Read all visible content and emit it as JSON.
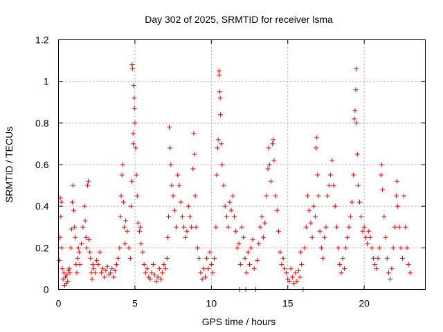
{
  "chart_data": {
    "type": "scatter",
    "title": "Day 302 of 2025, SRMTID for receiver lsma",
    "xlabel": "GPS time / hours",
    "ylabel": "SRMTID / TECUs",
    "xlim": [
      0,
      24
    ],
    "ylim": [
      0,
      1.2
    ],
    "xticks": [
      0,
      5,
      10,
      15,
      20
    ],
    "xtick_labels": [
      "0",
      "5",
      "10",
      "15",
      "20"
    ],
    "yticks": [
      0,
      0.2,
      0.4,
      0.6,
      0.8,
      1.0,
      1.2
    ],
    "ytick_labels": [
      "0",
      "0.2",
      "0.4",
      "0.6",
      "0.8",
      "1",
      "1.2"
    ],
    "grid": true,
    "marker": "+",
    "series": [
      {
        "name": "SRMTID",
        "color": "#e00000",
        "points": [
          [
            0.05,
            0.14
          ],
          [
            0.1,
            0.25
          ],
          [
            0.12,
            0.44
          ],
          [
            0.15,
            0.35
          ],
          [
            0.2,
            0.42
          ],
          [
            0.22,
            0.2
          ],
          [
            0.25,
            0.1
          ],
          [
            0.3,
            0.05
          ],
          [
            0.35,
            0.08
          ],
          [
            0.4,
            0.02
          ],
          [
            0.45,
            0.06
          ],
          [
            0.5,
            0.03
          ],
          [
            0.55,
            0.07
          ],
          [
            0.6,
            0.04
          ],
          [
            0.65,
            0.09
          ],
          [
            0.7,
            0.1
          ],
          [
            0.75,
            0.08
          ],
          [
            0.8,
            0.2
          ],
          [
            0.85,
            0.29
          ],
          [
            0.9,
            0.42
          ],
          [
            0.95,
            0.5
          ],
          [
            1.0,
            0.38
          ],
          [
            1.05,
            0.3
          ],
          [
            1.1,
            0.25
          ],
          [
            1.15,
            0.12
          ],
          [
            1.2,
            0.08
          ],
          [
            1.25,
            0.15
          ],
          [
            1.3,
            0.2
          ],
          [
            1.35,
            0.18
          ],
          [
            1.4,
            0.12
          ],
          [
            1.5,
            0.22
          ],
          [
            1.6,
            0.3
          ],
          [
            1.7,
            0.4
          ],
          [
            1.75,
            0.33
          ],
          [
            1.8,
            0.25
          ],
          [
            1.85,
            0.2
          ],
          [
            1.9,
            0.5
          ],
          [
            1.95,
            0.52
          ],
          [
            2.0,
            0.24
          ],
          [
            2.05,
            0.18
          ],
          [
            2.1,
            0.15
          ],
          [
            2.15,
            0.08
          ],
          [
            2.2,
            0.05
          ],
          [
            2.25,
            0.12
          ],
          [
            2.3,
            0.1
          ],
          [
            2.4,
            0.08
          ],
          [
            2.5,
            0.14
          ],
          [
            2.6,
            0.12
          ],
          [
            2.7,
            0.18
          ],
          [
            2.8,
            0.08
          ],
          [
            2.9,
            0.1
          ],
          [
            3.0,
            0.06
          ],
          [
            3.1,
            0.09
          ],
          [
            3.2,
            0.11
          ],
          [
            3.3,
            0.07
          ],
          [
            3.4,
            0.08
          ],
          [
            3.5,
            0.1
          ],
          [
            3.6,
            0.06
          ],
          [
            3.7,
            0.09
          ],
          [
            3.8,
            0.12
          ],
          [
            3.9,
            0.15
          ],
          [
            4.0,
            0.2
          ],
          [
            4.05,
            0.35
          ],
          [
            4.1,
            0.45
          ],
          [
            4.15,
            0.55
          ],
          [
            4.2,
            0.6
          ],
          [
            4.25,
            0.42
          ],
          [
            4.3,
            0.3
          ],
          [
            4.35,
            0.22
          ],
          [
            4.4,
            0.33
          ],
          [
            4.5,
            0.28
          ],
          [
            4.6,
            0.2
          ],
          [
            4.7,
            0.15
          ],
          [
            4.75,
            0.4
          ],
          [
            4.8,
            0.52
          ],
          [
            4.82,
            1.08
          ],
          [
            4.85,
            1.06
          ],
          [
            4.88,
            0.75
          ],
          [
            4.9,
            0.7
          ],
          [
            4.92,
            0.98
          ],
          [
            4.95,
            0.92
          ],
          [
            4.97,
            0.87
          ],
          [
            5.0,
            0.8
          ],
          [
            5.05,
            0.68
          ],
          [
            5.1,
            0.55
          ],
          [
            5.15,
            0.45
          ],
          [
            5.2,
            0.32
          ],
          [
            5.3,
            0.28
          ],
          [
            5.35,
            0.3
          ],
          [
            5.4,
            0.22
          ],
          [
            5.5,
            0.18
          ],
          [
            5.6,
            0.12
          ],
          [
            5.7,
            0.08
          ],
          [
            5.8,
            0.1
          ],
          [
            5.9,
            0.06
          ],
          [
            6.0,
            0.05
          ],
          [
            6.1,
            0.08
          ],
          [
            6.2,
            0.12
          ],
          [
            6.3,
            0.07
          ],
          [
            6.4,
            0.04
          ],
          [
            6.5,
            0.06
          ],
          [
            6.6,
            0.1
          ],
          [
            6.7,
            0.05
          ],
          [
            6.8,
            0.08
          ],
          [
            6.9,
            0.12
          ],
          [
            7.0,
            0.1
          ],
          [
            7.1,
            0.15
          ],
          [
            7.15,
            0.25
          ],
          [
            7.2,
            0.35
          ],
          [
            7.25,
            0.78
          ],
          [
            7.3,
            0.68
          ],
          [
            7.35,
            0.6
          ],
          [
            7.4,
            0.5
          ],
          [
            7.5,
            0.45
          ],
          [
            7.6,
            0.38
          ],
          [
            7.7,
            0.3
          ],
          [
            7.8,
            0.55
          ],
          [
            7.9,
            0.5
          ],
          [
            8.0,
            0.42
          ],
          [
            8.1,
            0.35
          ],
          [
            8.2,
            0.3
          ],
          [
            8.3,
            0.25
          ],
          [
            8.4,
            0.28
          ],
          [
            8.5,
            0.4
          ],
          [
            8.6,
            0.35
          ],
          [
            8.7,
            0.3
          ],
          [
            8.8,
            0.58
          ],
          [
            8.85,
            0.75
          ],
          [
            8.9,
            0.65
          ],
          [
            8.95,
            0.45
          ],
          [
            9.0,
            0.3
          ],
          [
            9.1,
            0.2
          ],
          [
            9.2,
            0.15
          ],
          [
            9.3,
            0.08
          ],
          [
            9.4,
            0.05
          ],
          [
            9.5,
            0.1
          ],
          [
            9.6,
            0.06
          ],
          [
            9.7,
            0.15
          ],
          [
            9.8,
            0.1
          ],
          [
            9.9,
            0.18
          ],
          [
            10.0,
            0.12
          ],
          [
            10.1,
            0.08
          ],
          [
            10.2,
            0.15
          ],
          [
            10.3,
            0.3
          ],
          [
            10.35,
            0.55
          ],
          [
            10.4,
            0.68
          ],
          [
            10.45,
            0.72
          ],
          [
            10.5,
            1.05
          ],
          [
            10.52,
            1.03
          ],
          [
            10.55,
            0.95
          ],
          [
            10.58,
            0.92
          ],
          [
            10.6,
            0.84
          ],
          [
            10.65,
            0.7
          ],
          [
            10.7,
            0.6
          ],
          [
            10.8,
            0.5
          ],
          [
            10.9,
            0.4
          ],
          [
            11.0,
            0.35
          ],
          [
            11.1,
            0.3
          ],
          [
            11.2,
            0.42
          ],
          [
            11.3,
            0.38
          ],
          [
            11.4,
            0.45
          ],
          [
            11.5,
            0.35
          ],
          [
            11.6,
            0.28
          ],
          [
            11.7,
            0.2
          ],
          [
            11.8,
            0.22
          ],
          [
            11.85,
            0.0
          ],
          [
            11.9,
            0.12
          ],
          [
            12.0,
            0.3
          ],
          [
            12.1,
            0.25
          ],
          [
            12.2,
            0.15
          ],
          [
            12.25,
            0.0
          ],
          [
            12.3,
            0.08
          ],
          [
            12.4,
            0.18
          ],
          [
            12.5,
            0.12
          ],
          [
            12.6,
            0.2
          ],
          [
            12.7,
            0.24
          ],
          [
            12.8,
            0.1
          ],
          [
            12.9,
            0.0
          ],
          [
            13.0,
            0.14
          ],
          [
            13.1,
            0.22
          ],
          [
            13.2,
            0.3
          ],
          [
            13.3,
            0.35
          ],
          [
            13.4,
            0.25
          ],
          [
            13.5,
            0.32
          ],
          [
            13.6,
            0.45
          ],
          [
            13.7,
            0.58
          ],
          [
            13.75,
            0.68
          ],
          [
            13.8,
            0.6
          ],
          [
            13.9,
            0.52
          ],
          [
            14.0,
            0.7
          ],
          [
            14.05,
            0.72
          ],
          [
            14.1,
            0.62
          ],
          [
            14.2,
            0.45
          ],
          [
            14.3,
            0.38
          ],
          [
            14.4,
            0.28
          ],
          [
            14.5,
            0.18
          ],
          [
            14.6,
            0.12
          ],
          [
            14.7,
            0.15
          ],
          [
            14.8,
            0.1
          ],
          [
            14.9,
            0.08
          ],
          [
            15.0,
            0.05
          ],
          [
            15.1,
            0.04
          ],
          [
            15.2,
            0.1
          ],
          [
            15.3,
            0.06
          ],
          [
            15.4,
            0.03
          ],
          [
            15.5,
            0.08
          ],
          [
            15.6,
            0.04
          ],
          [
            15.7,
            0.09
          ],
          [
            15.8,
            0.06
          ],
          [
            15.85,
            0.18
          ],
          [
            15.9,
            0.12
          ],
          [
            16.0,
            0.0
          ],
          [
            16.1,
            0.2
          ],
          [
            16.2,
            0.3
          ],
          [
            16.3,
            0.45
          ],
          [
            16.4,
            0.38
          ],
          [
            16.5,
            0.32
          ],
          [
            16.6,
            0.25
          ],
          [
            16.7,
            0.4
          ],
          [
            16.8,
            0.35
          ],
          [
            16.85,
            0.68
          ],
          [
            16.9,
            0.73
          ],
          [
            16.95,
            0.55
          ],
          [
            17.0,
            0.45
          ],
          [
            17.1,
            0.28
          ],
          [
            17.2,
            0.2
          ],
          [
            17.3,
            0.15
          ],
          [
            17.4,
            0.25
          ],
          [
            17.5,
            0.3
          ],
          [
            17.6,
            0.45
          ],
          [
            17.7,
            0.5
          ],
          [
            17.8,
            0.55
          ],
          [
            17.9,
            0.62
          ],
          [
            18.0,
            0.5
          ],
          [
            18.1,
            0.4
          ],
          [
            18.2,
            0.3
          ],
          [
            18.3,
            0.2
          ],
          [
            18.4,
            0.12
          ],
          [
            18.5,
            0.08
          ],
          [
            18.6,
            0.15
          ],
          [
            18.7,
            0.1
          ],
          [
            18.8,
            0.2
          ],
          [
            18.9,
            0.25
          ],
          [
            19.0,
            0.3
          ],
          [
            19.1,
            0.35
          ],
          [
            19.2,
            0.42
          ],
          [
            19.3,
            0.55
          ],
          [
            19.35,
            0.82
          ],
          [
            19.4,
            0.86
          ],
          [
            19.45,
            0.96
          ],
          [
            19.48,
            1.06
          ],
          [
            19.5,
            0.8
          ],
          [
            19.55,
            0.65
          ],
          [
            19.6,
            0.5
          ],
          [
            19.7,
            0.42
          ],
          [
            19.8,
            0.35
          ],
          [
            19.9,
            0.28
          ],
          [
            20.0,
            0.3
          ],
          [
            20.1,
            0.25
          ],
          [
            20.2,
            0.22
          ],
          [
            20.3,
            0.28
          ],
          [
            20.4,
            0.25
          ],
          [
            20.5,
            0.2
          ],
          [
            20.6,
            0.15
          ],
          [
            20.7,
            0.12
          ],
          [
            20.8,
            0.1
          ],
          [
            20.9,
            0.15
          ],
          [
            21.0,
            0.2
          ],
          [
            21.1,
            0.55
          ],
          [
            21.15,
            0.6
          ],
          [
            21.2,
            0.48
          ],
          [
            21.3,
            0.35
          ],
          [
            21.4,
            0.25
          ],
          [
            21.5,
            0.15
          ],
          [
            21.6,
            0.08
          ],
          [
            21.7,
            0.05
          ],
          [
            21.8,
            0.1
          ],
          [
            21.9,
            0.2
          ],
          [
            22.0,
            0.3
          ],
          [
            22.1,
            0.45
          ],
          [
            22.15,
            0.52
          ],
          [
            22.2,
            0.4
          ],
          [
            22.3,
            0.3
          ],
          [
            22.4,
            0.2
          ],
          [
            22.5,
            0.15
          ],
          [
            22.6,
            0.45
          ],
          [
            22.7,
            0.3
          ],
          [
            22.8,
            0.2
          ],
          [
            22.9,
            0.12
          ],
          [
            23.0,
            0.08
          ]
        ]
      }
    ]
  }
}
